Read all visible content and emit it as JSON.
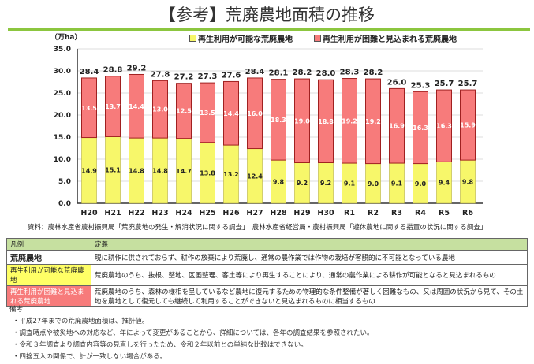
{
  "title": "【参考】荒廃農地面積の推移",
  "chart_data": {
    "type": "bar",
    "stacked": true,
    "ylabel": "（万ha）",
    "ylim": [
      0,
      35
    ],
    "yticks": [
      "0.0",
      "5.0",
      "10.0",
      "15.0",
      "20.0",
      "25.0",
      "30.0",
      "35.0"
    ],
    "categories": [
      "H20",
      "H21",
      "H22",
      "H23",
      "H24",
      "H25",
      "H26",
      "H27",
      "H28",
      "H29",
      "H30",
      "R1",
      "R2",
      "R3",
      "R4",
      "R5",
      "R6"
    ],
    "series": [
      {
        "name": "再生利用が可能な荒廃農地",
        "color": "#f7f76a",
        "values": [
          14.9,
          15.1,
          14.8,
          14.8,
          14.7,
          13.8,
          13.2,
          12.4,
          9.8,
          9.2,
          9.2,
          9.1,
          9.0,
          9.1,
          9.0,
          9.4,
          9.8
        ]
      },
      {
        "name": "再生利用が困難と見込まれる荒廃農地",
        "color": "#f77b7b",
        "values": [
          13.5,
          13.7,
          14.4,
          13.0,
          12.5,
          13.5,
          14.4,
          16.0,
          18.3,
          19.0,
          18.8,
          19.2,
          19.2,
          16.9,
          16.3,
          16.3,
          15.9
        ]
      }
    ],
    "totals": [
      "28.4",
      "28.8",
      "29.2",
      "27.8",
      "27.2",
      "27.3",
      "27.6",
      "28.4",
      "28.1",
      "28.2",
      "28.0",
      "28.3",
      "28.2",
      "26.0",
      "25.3",
      "25.7",
      "25.7"
    ],
    "legend": "top-right"
  },
  "source": "資料：農林水産省農村振興局「荒廃農地の発生・解消状況に関する調査」　農林水産省経営局・農村振興局「遊休農地に関する措置の状況に関する調査」",
  "table": {
    "headers": [
      "凡例",
      "定義"
    ],
    "rows": [
      {
        "label": "荒廃農地",
        "def": "現に耕作に供されておらず、耕作の放棄により荒廃し、通常の農作業では作物の栽培が客観的に不可能となっている農地",
        "color": "#ffffff"
      },
      {
        "label": "再生利用が可能な荒廃農地",
        "def": "荒廃農地のうち、抜根、整地、区画整理、客土等により再生することにより、通常の農作業による耕作が可能となると見込まれるもの",
        "color": "#ffff66"
      },
      {
        "label": "再生利用が困難と見込まれる荒廃農地",
        "def": "荒廃農地のうち、森林の様相を呈しているなど農地に復元するための物理的な条件整備が著しく困難なもの、又は周囲の状況から見て、その土地を農地として復元しても継続して利用することができないと見込まれるものに相当するもの",
        "color": "#f77b7b"
      }
    ]
  },
  "notes": {
    "heading": "備考",
    "items": [
      "・平成27年までの荒廃農地面積は、推計値。",
      "・調査時点や被災地への対応など、年によって変更があることから、詳細については、各年の調査結果を参照されたい。",
      "・令和３年調査より調査内容等の見直しを行ったため、令和２年以前との単純な比較はできない。",
      "・四捨五入の関係で、計が一致しない場合がある。"
    ]
  }
}
